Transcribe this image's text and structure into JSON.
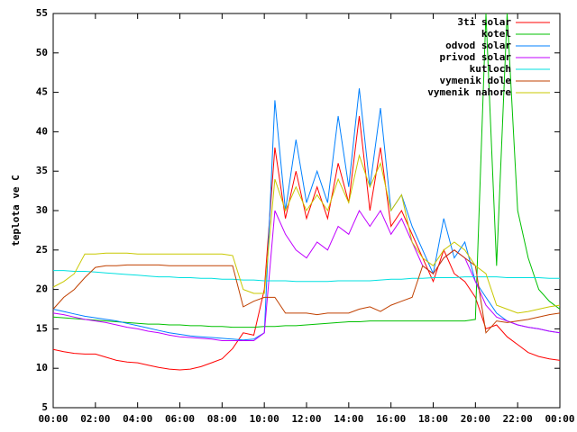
{
  "chart_data": {
    "type": "line",
    "y_label": "teplota ve C",
    "legend": "top-right",
    "grid": false,
    "x": [
      0,
      0.5,
      1,
      1.5,
      2,
      2.5,
      3,
      3.5,
      4,
      4.5,
      5,
      5.5,
      6,
      6.5,
      7,
      7.5,
      8,
      8.5,
      9,
      9.5,
      10,
      10.5,
      11,
      11.5,
      12,
      12.5,
      13,
      13.5,
      14,
      14.5,
      15,
      15.5,
      16,
      16.5,
      17,
      17.5,
      18,
      18.5,
      19,
      19.5,
      20,
      20.5,
      21,
      21.5,
      22,
      22.5,
      23,
      23.5,
      24
    ],
    "xlim": [
      0,
      24
    ],
    "xticks": [
      {
        "value": 0,
        "label": "00:00"
      },
      {
        "value": 2,
        "label": "02:00"
      },
      {
        "value": 4,
        "label": "04:00"
      },
      {
        "value": 6,
        "label": "06:00"
      },
      {
        "value": 8,
        "label": "08:00"
      },
      {
        "value": 10,
        "label": "10:00"
      },
      {
        "value": 12,
        "label": "12:00"
      },
      {
        "value": 14,
        "label": "14:00"
      },
      {
        "value": 16,
        "label": "16:00"
      },
      {
        "value": 18,
        "label": "18:00"
      },
      {
        "value": 20,
        "label": "20:00"
      },
      {
        "value": 22,
        "label": "22:00"
      },
      {
        "value": 24,
        "label": "00:00"
      }
    ],
    "ylim": [
      5,
      55
    ],
    "yticks": [
      5,
      10,
      15,
      20,
      25,
      30,
      35,
      40,
      45,
      50,
      55
    ],
    "series": [
      {
        "name": "3ti solar",
        "color": "#ff0000",
        "values": [
          12.4,
          12.1,
          11.9,
          11.8,
          11.8,
          11.4,
          11.0,
          10.8,
          10.7,
          10.4,
          10.1,
          9.9,
          9.8,
          9.9,
          10.2,
          10.7,
          11.2,
          12.5,
          14.5,
          14.2,
          20,
          38,
          29,
          35,
          29,
          33,
          29,
          36,
          31,
          42,
          30,
          38,
          28,
          30,
          27,
          24,
          21,
          25,
          22,
          21,
          19,
          15,
          15.5,
          14,
          13,
          12,
          11.5,
          11.2,
          11.0
        ]
      },
      {
        "name": "kotel",
        "color": "#00c000",
        "values": [
          16.5,
          16.4,
          16.3,
          16.2,
          16.1,
          16,
          15.9,
          15.8,
          15.7,
          15.6,
          15.6,
          15.5,
          15.5,
          15.4,
          15.4,
          15.3,
          15.3,
          15.2,
          15.2,
          15.2,
          15.3,
          15.3,
          15.4,
          15.4,
          15.5,
          15.6,
          15.7,
          15.8,
          15.9,
          15.9,
          16,
          16,
          16,
          16,
          16,
          16,
          16,
          16,
          16,
          16,
          16.2,
          55,
          23,
          55,
          30,
          24,
          20,
          18.5,
          17.5
        ]
      },
      {
        "name": "odvod solar",
        "color": "#0080ff",
        "values": [
          17.5,
          17.2,
          16.9,
          16.6,
          16.4,
          16.2,
          16,
          15.7,
          15.4,
          15.1,
          14.8,
          14.5,
          14.3,
          14.1,
          14,
          13.9,
          13.8,
          13.7,
          13.6,
          13.7,
          14.5,
          44,
          30,
          39,
          31,
          35,
          31,
          42,
          33,
          45.5,
          33,
          43,
          30,
          32,
          28,
          25,
          22,
          29,
          24,
          26,
          21,
          19,
          17,
          16,
          15.5,
          15.2,
          15,
          14.7,
          14.5
        ]
      },
      {
        "name": "privod solar",
        "color": "#c000ff",
        "values": [
          17,
          16.8,
          16.5,
          16.2,
          16,
          15.8,
          15.5,
          15.2,
          15,
          14.7,
          14.5,
          14.2,
          14,
          13.9,
          13.8,
          13.7,
          13.5,
          13.5,
          13.5,
          13.5,
          14.5,
          30,
          27,
          25,
          24,
          26,
          25,
          28,
          27,
          30,
          28,
          30,
          27,
          29,
          26,
          23,
          22,
          24,
          25,
          24,
          21,
          18,
          16.5,
          16,
          15.5,
          15.2,
          15,
          14.7,
          14.5
        ]
      },
      {
        "name": "kutloch",
        "color": "#00e0e0",
        "values": [
          22.4,
          22.4,
          22.3,
          22.3,
          22.2,
          22.1,
          22,
          21.9,
          21.8,
          21.7,
          21.6,
          21.6,
          21.5,
          21.5,
          21.4,
          21.4,
          21.3,
          21.3,
          21.2,
          21.2,
          21.1,
          21.1,
          21.1,
          21,
          21,
          21,
          21,
          21.1,
          21.1,
          21.1,
          21.1,
          21.2,
          21.3,
          21.3,
          21.4,
          21.4,
          21.5,
          21.5,
          21.5,
          21.6,
          21.6,
          21.6,
          21.6,
          21.5,
          21.5,
          21.5,
          21.5,
          21.4,
          21.4
        ]
      },
      {
        "name": "vymenik dole",
        "color": "#c04000",
        "values": [
          17.5,
          19,
          20,
          21.5,
          22.8,
          23,
          23,
          23.1,
          23.1,
          23.1,
          23.1,
          23,
          23,
          23,
          23,
          23,
          23,
          23,
          17.8,
          18.5,
          19,
          19,
          17,
          17,
          17,
          16.8,
          17,
          17,
          17,
          17.5,
          17.8,
          17.2,
          18,
          18.5,
          19,
          23,
          22,
          24,
          25,
          24,
          23,
          14.5,
          16,
          15.8,
          16,
          16.2,
          16.5,
          16.8,
          17
        ]
      },
      {
        "name": "vymenik nahore",
        "color": "#c8c800",
        "values": [
          20.3,
          21,
          22,
          24.5,
          24.5,
          24.6,
          24.6,
          24.6,
          24.5,
          24.5,
          24.5,
          24.5,
          24.5,
          24.5,
          24.5,
          24.5,
          24.5,
          24.3,
          20,
          19.5,
          19.5,
          34,
          30,
          33,
          30,
          32,
          30,
          34,
          31,
          37,
          33,
          36,
          30,
          32,
          26,
          24,
          23,
          25,
          26,
          25,
          23,
          22,
          18,
          17.5,
          17,
          17.2,
          17.5,
          17.8,
          18
        ]
      }
    ]
  }
}
